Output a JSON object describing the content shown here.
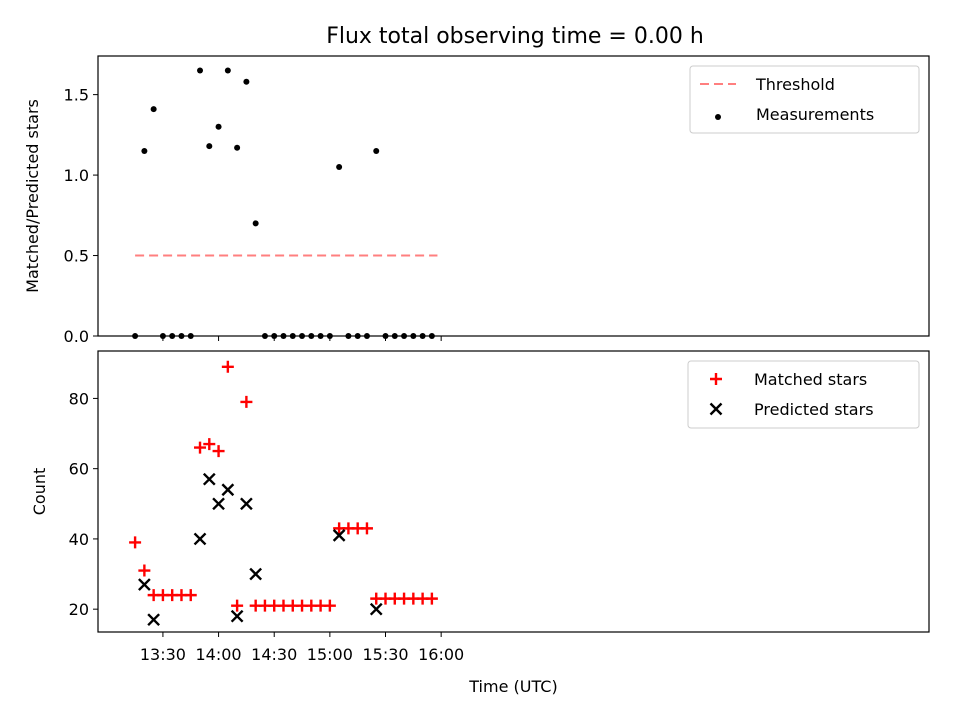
{
  "chart_data": [
    {
      "type": "scatter",
      "title": "Flux total observing time = 0.00 h",
      "xlabel": "",
      "ylabel": "Matched/Predicted stars",
      "xlim_minutes": [
        775,
        1223
      ],
      "ylim": [
        0,
        1.74
      ],
      "yticks": [
        0.0,
        0.5,
        1.0,
        1.5
      ],
      "ytick_labels": [
        "0.0",
        "0.5",
        "1.0",
        "1.5"
      ],
      "xticks_minutes": [
        810,
        840,
        870,
        900,
        930,
        960
      ],
      "legend_position": "upper right",
      "legend": [
        "Threshold",
        "Measurements"
      ],
      "series": [
        {
          "name": "Threshold",
          "style": "dashed-line",
          "color": "#ff7f7f",
          "x": [
            795,
            958
          ],
          "y": [
            0.5,
            0.5
          ]
        },
        {
          "name": "Measurements",
          "style": "dot",
          "color": "#000000",
          "x": [
            795,
            800,
            805,
            810,
            815,
            820,
            825,
            830,
            835,
            840,
            845,
            850,
            855,
            860,
            865,
            870,
            875,
            880,
            885,
            890,
            895,
            900,
            905,
            910,
            915,
            920,
            925,
            930,
            935,
            940,
            945,
            950,
            955
          ],
          "y": [
            0.0,
            1.15,
            1.41,
            0.0,
            0.0,
            0.0,
            0.0,
            1.65,
            1.18,
            1.3,
            1.65,
            1.17,
            1.58,
            0.7,
            0.0,
            0.0,
            0.0,
            0.0,
            0.0,
            0.0,
            0.0,
            0.0,
            1.05,
            0.0,
            0.0,
            0.0,
            1.15,
            0.0,
            0.0,
            0.0,
            0.0,
            0.0,
            0.0
          ]
        }
      ]
    },
    {
      "type": "scatter",
      "title": "",
      "xlabel": "Time (UTC)",
      "ylabel": "Count",
      "xlim_minutes": [
        775,
        1223
      ],
      "ylim": [
        13.5,
        93.5
      ],
      "yticks": [
        20,
        40,
        60,
        80
      ],
      "ytick_labels": [
        "20",
        "40",
        "60",
        "80"
      ],
      "xticks_minutes": [
        810,
        840,
        870,
        900,
        930,
        960
      ],
      "xtick_labels": [
        "13:30",
        "14:00",
        "14:30",
        "15:00",
        "15:30",
        "16:00"
      ],
      "legend_position": "upper right",
      "legend": [
        "Matched stars",
        "Predicted stars"
      ],
      "series": [
        {
          "name": "Matched stars",
          "marker": "+",
          "color": "#ff0000",
          "x": [
            795,
            800,
            805,
            810,
            815,
            820,
            825,
            830,
            835,
            840,
            845,
            850,
            855,
            860,
            865,
            870,
            875,
            880,
            885,
            890,
            895,
            900,
            905,
            910,
            915,
            920,
            925,
            930,
            935,
            940,
            945,
            950,
            955
          ],
          "y": [
            39,
            31,
            24,
            24,
            24,
            24,
            24,
            66,
            67,
            65,
            89,
            21,
            79,
            21,
            21,
            21,
            21,
            21,
            21,
            21,
            21,
            21,
            43,
            43,
            43,
            43,
            23,
            23,
            23,
            23,
            23,
            23,
            23
          ]
        },
        {
          "name": "Predicted stars",
          "marker": "x",
          "color": "#000000",
          "x": [
            800,
            805,
            830,
            835,
            840,
            845,
            850,
            855,
            860,
            905,
            925
          ],
          "y": [
            27,
            17,
            40,
            57,
            50,
            54,
            18,
            50,
            30,
            41,
            20
          ]
        }
      ]
    }
  ],
  "figure_title": "Flux total observing time = 0.00 h"
}
